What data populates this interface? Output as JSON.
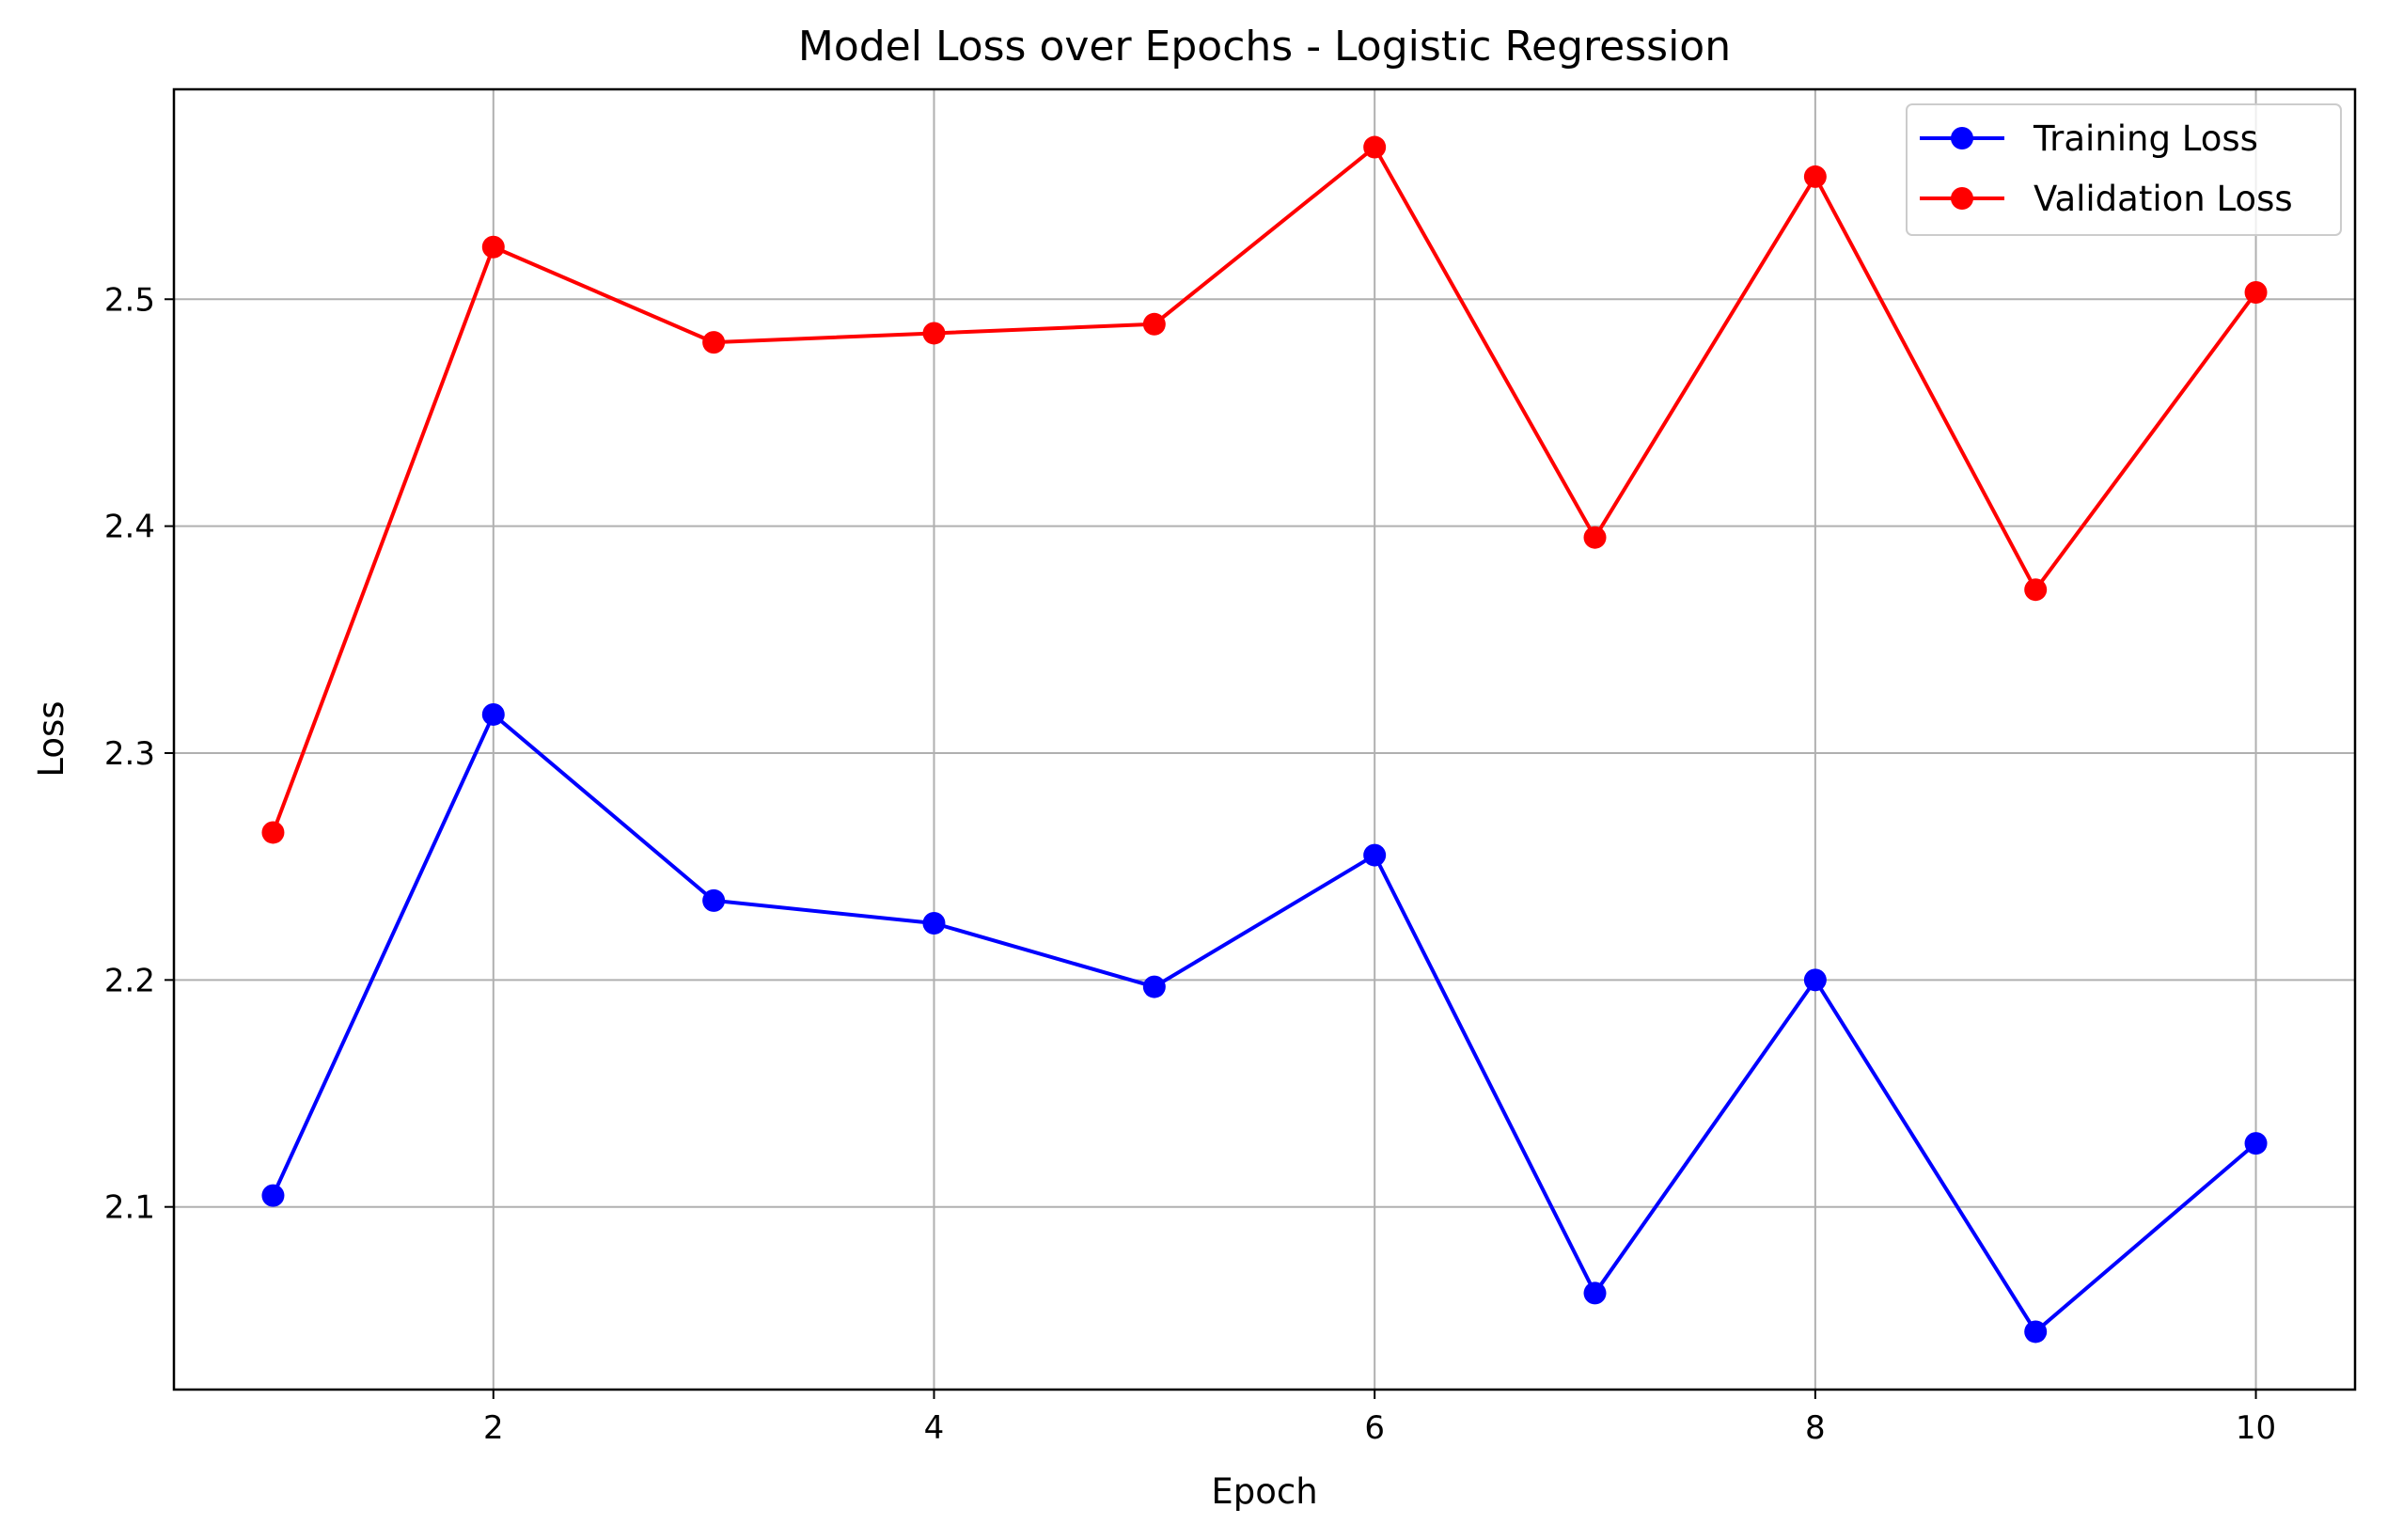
{
  "chart_data": {
    "type": "line",
    "title": "Model Loss over Epochs - Logistic Regression",
    "xlabel": "Epoch",
    "ylabel": "Loss",
    "x": [
      1,
      2,
      3,
      4,
      5,
      6,
      7,
      8,
      9,
      10
    ],
    "xlim": [
      0.55,
      10.45
    ],
    "ylim": [
      2.0195,
      2.5925
    ],
    "xticks": [
      2,
      4,
      6,
      8,
      10
    ],
    "yticks": [
      2.1,
      2.2,
      2.3,
      2.4,
      2.5
    ],
    "xtick_labels": [
      "2",
      "4",
      "6",
      "8",
      "10"
    ],
    "ytick_labels": [
      "2.1",
      "2.2",
      "2.3",
      "2.4",
      "2.5"
    ],
    "grid": true,
    "legend_position": "top-right",
    "series": [
      {
        "name": "Training Loss",
        "color": "#0000ff",
        "marker": "circle",
        "values": [
          2.105,
          2.317,
          2.235,
          2.225,
          2.197,
          2.255,
          2.062,
          2.2,
          2.045,
          2.128
        ]
      },
      {
        "name": "Validation Loss",
        "color": "#ff0000",
        "marker": "circle",
        "values": [
          2.265,
          2.523,
          2.481,
          2.485,
          2.489,
          2.567,
          2.395,
          2.554,
          2.372,
          2.503
        ]
      }
    ]
  }
}
